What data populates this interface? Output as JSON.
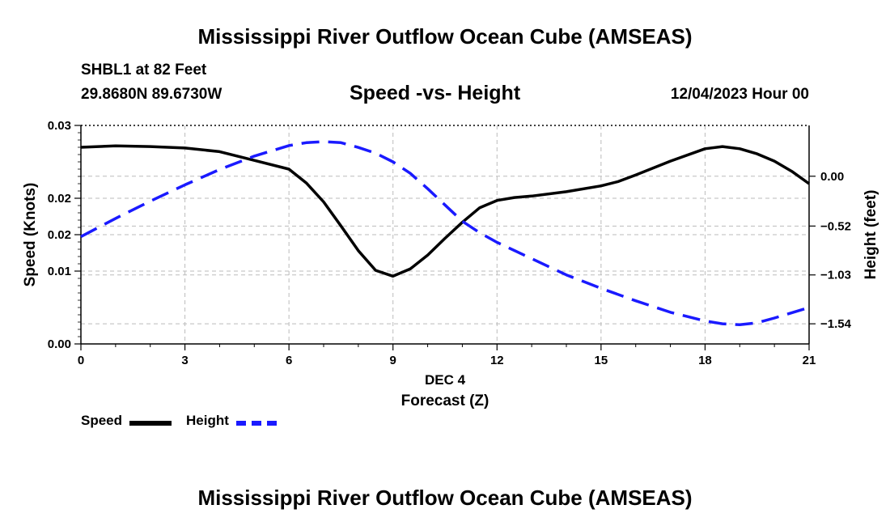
{
  "header": {
    "title_top": "Mississippi River Outflow Ocean Cube (AMSEAS)",
    "station": "SHBL1 at 82 Feet",
    "coords": "29.8680N  89.6730W",
    "subtitle": "Speed -vs- Height",
    "datetime": "12/04/2023 Hour 00",
    "title_bottom": "Mississippi River Outflow Ocean Cube (AMSEAS)"
  },
  "legend": {
    "speed_label": "Speed",
    "height_label": "Height"
  },
  "chart_data": {
    "type": "line",
    "title": "Speed -vs- Height",
    "xlabel": "Forecast (Z)",
    "xlabel_date": "DEC 4",
    "ylabel_left": "Speed (Knots)",
    "ylabel_right": "Height (feet)",
    "xlim": [
      0,
      21
    ],
    "x_ticks": [
      0,
      3,
      6,
      9,
      12,
      15,
      18,
      21
    ],
    "y_left_lim": [
      0,
      0.03
    ],
    "y_left_ticks": [
      {
        "value": 0.0,
        "label": "0.00"
      },
      {
        "value": 0.01,
        "label": "0.01"
      },
      {
        "value": 0.015,
        "label": "0.02"
      },
      {
        "value": 0.02,
        "label": "0.02"
      },
      {
        "value": 0.03,
        "label": "0.03"
      }
    ],
    "y_right_lim": [
      -1.75,
      0.53
    ],
    "y_right_ticks": [
      {
        "value": 0.0,
        "label": "0.00"
      },
      {
        "value": -0.52,
        "label": "−0.52"
      },
      {
        "value": -1.03,
        "label": "−1.03"
      },
      {
        "value": -1.54,
        "label": "−1.54"
      }
    ],
    "grid": true,
    "series": [
      {
        "name": "Speed",
        "axis": "left",
        "color": "#000000",
        "style": "solid",
        "x": [
          0,
          1,
          2,
          3,
          4,
          5,
          6,
          6.5,
          7,
          7.5,
          8,
          8.5,
          9,
          9.5,
          10,
          10.5,
          11,
          11.5,
          12,
          12.5,
          13,
          14,
          15,
          15.5,
          16,
          17,
          18,
          18.5,
          19,
          19.5,
          20,
          20.5,
          21
        ],
        "y": [
          0.027,
          0.0272,
          0.0271,
          0.0269,
          0.0264,
          0.0252,
          0.024,
          0.0221,
          0.0195,
          0.0162,
          0.0128,
          0.0101,
          0.0093,
          0.0103,
          0.0122,
          0.0145,
          0.0167,
          0.0187,
          0.0197,
          0.0201,
          0.0203,
          0.0209,
          0.0217,
          0.0223,
          0.0232,
          0.0251,
          0.0268,
          0.0271,
          0.0268,
          0.0261,
          0.0251,
          0.0237,
          0.022
        ]
      },
      {
        "name": "Height",
        "axis": "right",
        "color": "#1a1aff",
        "style": "dashed",
        "x": [
          0,
          1,
          2,
          3,
          4,
          5,
          6,
          6.5,
          7,
          7.5,
          8,
          8.5,
          9,
          9.5,
          10,
          10.5,
          11,
          11.5,
          12,
          13,
          14,
          15,
          16,
          17,
          18,
          18.5,
          19,
          19.5,
          20,
          21
        ],
        "y": [
          -0.63,
          -0.44,
          -0.26,
          -0.09,
          0.07,
          0.21,
          0.32,
          0.35,
          0.36,
          0.35,
          0.3,
          0.24,
          0.15,
          0.03,
          -0.13,
          -0.3,
          -0.47,
          -0.59,
          -0.69,
          -0.86,
          -1.03,
          -1.17,
          -1.3,
          -1.42,
          -1.51,
          -1.54,
          -1.55,
          -1.53,
          -1.48,
          -1.37
        ]
      }
    ]
  }
}
